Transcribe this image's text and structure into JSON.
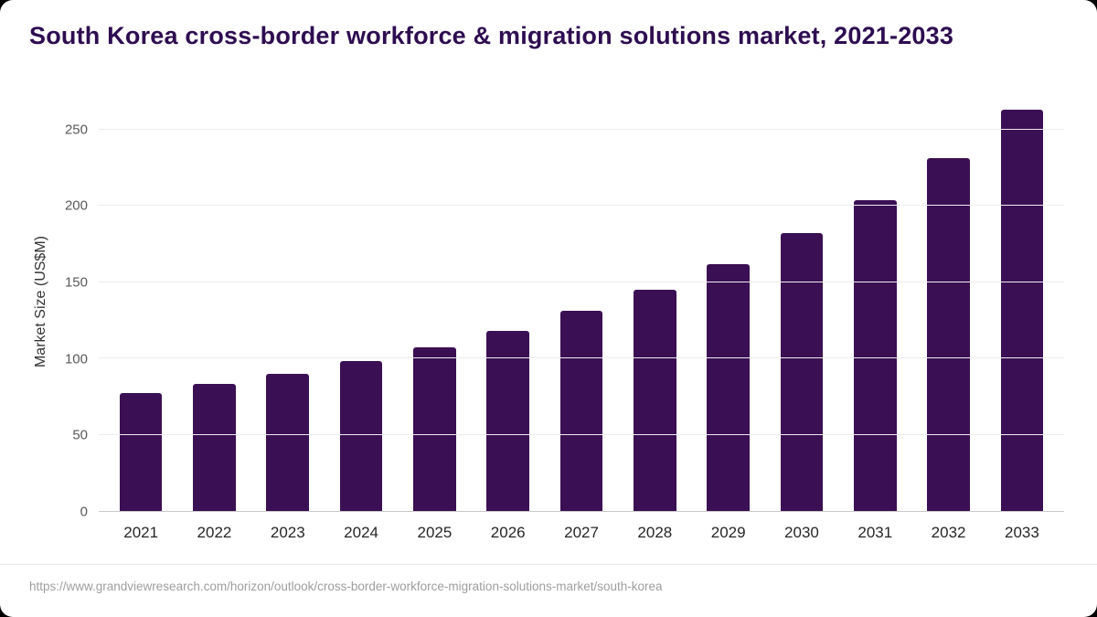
{
  "page": {
    "source_url": "https://www.grandviewresearch.com/horizon/outlook/cross-border-workforce-migration-solutions-market/south-korea"
  },
  "chart_data": {
    "type": "bar",
    "title": "South Korea cross-border workforce & migration solutions market, 2021-2033",
    "categories": [
      "2021",
      "2022",
      "2023",
      "2024",
      "2025",
      "2026",
      "2027",
      "2028",
      "2029",
      "2030",
      "2031",
      "2032",
      "2033"
    ],
    "values": [
      77,
      83,
      90,
      98,
      107,
      118,
      131,
      145,
      162,
      182,
      204,
      231,
      263
    ],
    "xlabel": "",
    "ylabel": "Market Size (US$M)",
    "ylim": [
      0,
      275
    ],
    "yticks": [
      0,
      50,
      100,
      150,
      200,
      250
    ],
    "grid": true,
    "legend": false,
    "bar_color": "#3b0f54",
    "title_color": "#2e0d51"
  }
}
